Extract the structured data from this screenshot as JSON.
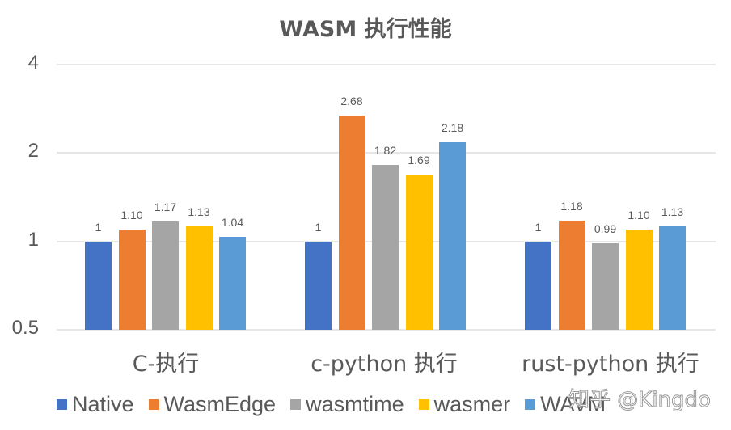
{
  "title": "WASM 执行性能",
  "watermark": "知乎 @Kingdo",
  "y_ticks": [
    "4",
    "2",
    "1",
    "0.5"
  ],
  "categories": [
    "C-执行",
    "c-python 执行",
    "rust-python 执行"
  ],
  "legend": [
    {
      "name": "Native",
      "color": "#4472C4"
    },
    {
      "name": "WasmEdge",
      "color": "#ED7D31"
    },
    {
      "name": "wasmtime",
      "color": "#A5A5A5"
    },
    {
      "name": "wasmer",
      "color": "#FFC000"
    },
    {
      "name": "WAVM",
      "color": "#5B9BD5"
    }
  ],
  "labels": {
    "g0": [
      "1",
      "1.10",
      "1.17",
      "1.13",
      "1.04"
    ],
    "g1": [
      "1",
      "2.68",
      "1.82",
      "1.69",
      "2.18"
    ],
    "g2": [
      "1",
      "1.18",
      "0.99",
      "1.10",
      "1.13"
    ]
  },
  "chart_data": {
    "type": "bar",
    "title": "WASM 执行性能",
    "xlabel": "",
    "ylabel": "",
    "yscale": "log2",
    "ylim": [
      0.5,
      4
    ],
    "yticks": [
      0.5,
      1,
      2,
      4
    ],
    "grid": true,
    "legend_position": "bottom",
    "categories": [
      "C-执行",
      "c-python 执行",
      "rust-python 执行"
    ],
    "series": [
      {
        "name": "Native",
        "color": "#4472C4",
        "values": [
          1,
          1,
          1
        ]
      },
      {
        "name": "WasmEdge",
        "color": "#ED7D31",
        "values": [
          1.1,
          2.68,
          1.18
        ]
      },
      {
        "name": "wasmtime",
        "color": "#A5A5A5",
        "values": [
          1.17,
          1.82,
          0.99
        ]
      },
      {
        "name": "wasmer",
        "color": "#FFC000",
        "values": [
          1.13,
          1.69,
          1.1
        ]
      },
      {
        "name": "WAVM",
        "color": "#5B9BD5",
        "values": [
          1.04,
          2.18,
          1.13
        ]
      }
    ]
  }
}
